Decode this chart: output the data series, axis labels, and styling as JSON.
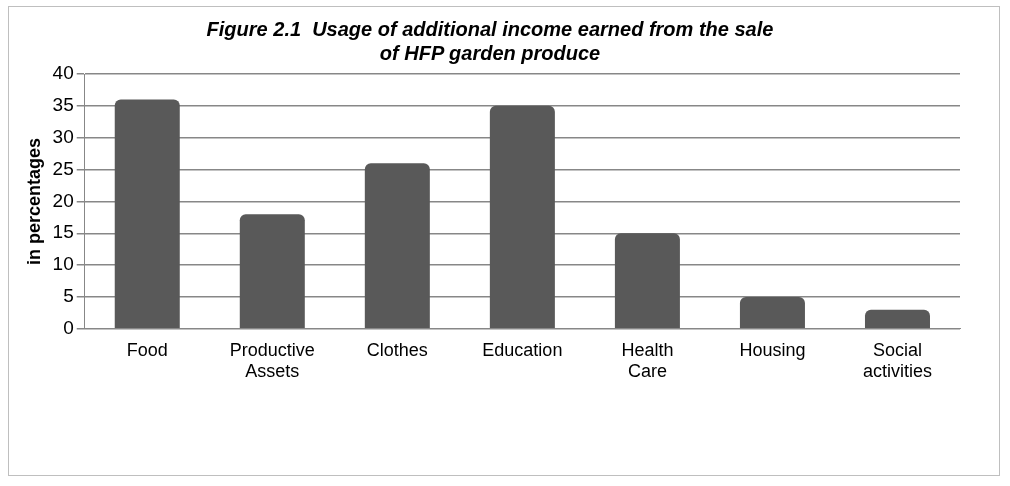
{
  "chart_data": {
    "type": "bar",
    "title": "Figure 2.1  Usage of additional income earned from the sale of HFP garden produce",
    "ylabel": "in percentages",
    "categories": [
      "Food",
      "Productive Assets",
      "Clothes",
      "Education",
      "Health Care",
      "Housing",
      "Social activities"
    ],
    "values": [
      36,
      18,
      26,
      35,
      15,
      5,
      3
    ],
    "color": "#595959",
    "ylim": [
      0,
      40
    ],
    "yticks": [
      0,
      5,
      10,
      15,
      20,
      25,
      30,
      35,
      40
    ],
    "grid": "y",
    "legend": false
  }
}
